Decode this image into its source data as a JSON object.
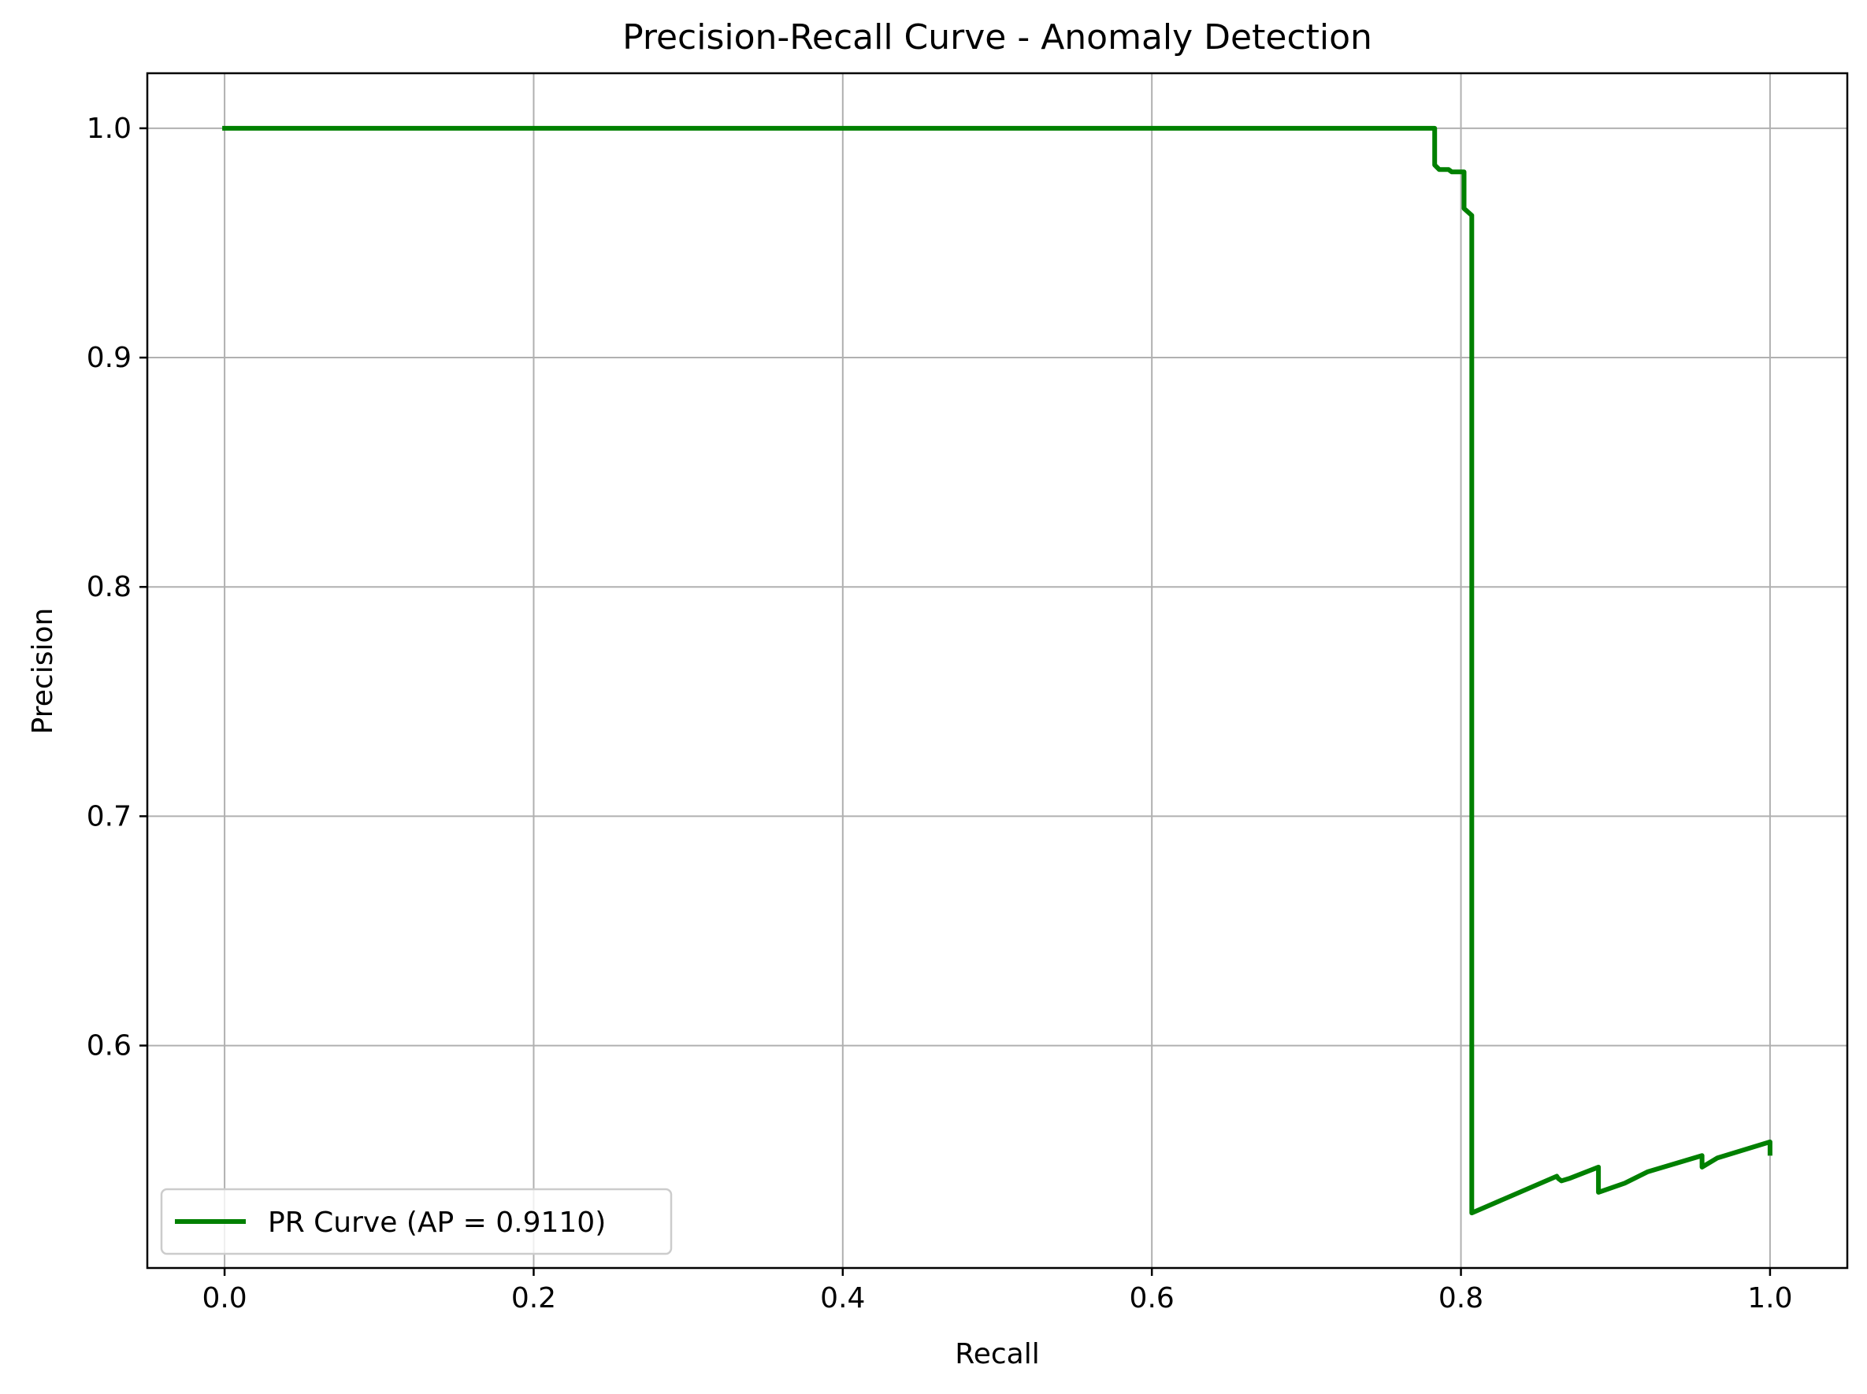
{
  "chart_data": {
    "type": "line",
    "title": "Precision-Recall Curve - Anomaly Detection",
    "xlabel": "Recall",
    "ylabel": "Precision",
    "xlim": [
      -0.05,
      1.05
    ],
    "ylim": [
      0.503,
      1.024
    ],
    "xticks": [
      0.0,
      0.2,
      0.4,
      0.6,
      0.8,
      1.0
    ],
    "yticks": [
      0.6,
      0.7,
      0.8,
      0.9,
      1.0
    ],
    "xtick_labels": [
      "0.0",
      "0.2",
      "0.4",
      "0.6",
      "0.8",
      "1.0"
    ],
    "ytick_labels": [
      "0.6",
      "0.7",
      "0.8",
      "0.9",
      "1.0"
    ],
    "grid": true,
    "legend_position": "lower-left",
    "series": [
      {
        "name": "PR Curve (AP = 0.9110)",
        "color": "#008000",
        "points": [
          [
            0.0,
            1.0
          ],
          [
            0.783,
            1.0
          ],
          [
            0.783,
            0.984
          ],
          [
            0.786,
            0.982
          ],
          [
            0.792,
            0.982
          ],
          [
            0.794,
            0.981
          ],
          [
            0.802,
            0.981
          ],
          [
            0.802,
            0.965
          ],
          [
            0.807,
            0.962
          ],
          [
            0.807,
            0.527
          ],
          [
            0.862,
            0.543
          ],
          [
            0.863,
            0.542
          ],
          [
            0.865,
            0.541
          ],
          [
            0.87,
            0.542
          ],
          [
            0.889,
            0.547
          ],
          [
            0.889,
            0.536
          ],
          [
            0.906,
            0.54
          ],
          [
            0.921,
            0.545
          ],
          [
            0.956,
            0.552
          ],
          [
            0.956,
            0.547
          ],
          [
            0.966,
            0.551
          ],
          [
            1.0,
            0.558
          ],
          [
            1.0,
            0.553
          ]
        ]
      }
    ]
  }
}
